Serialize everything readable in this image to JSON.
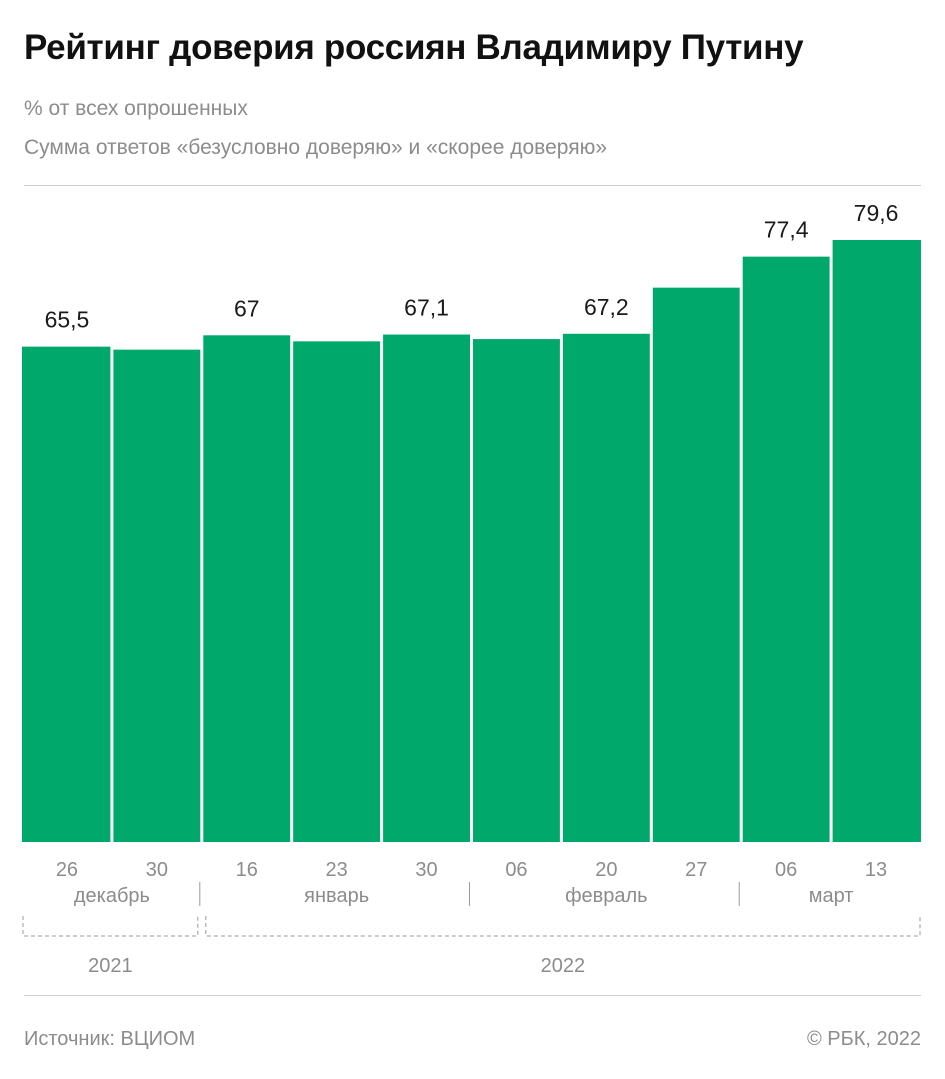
{
  "header": {
    "title": "Рейтинг доверия россиян Владимиру Путину",
    "subtitle_unit": "% от всех опрошенных",
    "subtitle_desc": "Сумма ответов «безусловно доверяю» и «скорее доверяю»"
  },
  "colors": {
    "bar": "#00a86b",
    "label": "#1a1a1a",
    "axis_text": "#8c8c8c",
    "divider": "#9a9a9a"
  },
  "chart_data": {
    "type": "bar",
    "title": "Рейтинг доверия россиян Владимиру Путину",
    "ylabel": "% от всех опрошенных",
    "xlabel": "",
    "ylim": [
      0,
      79.6
    ],
    "categories": [
      "26",
      "30",
      "16",
      "23",
      "30",
      "06",
      "20",
      "27",
      "06",
      "13"
    ],
    "values": [
      65.5,
      65.1,
      67.0,
      66.2,
      67.1,
      66.5,
      67.2,
      73.3,
      77.4,
      79.6
    ],
    "data_labels": [
      "65,5",
      "",
      "67",
      "",
      "67,1",
      "",
      "67,2",
      "",
      "77,4",
      "79,6"
    ],
    "months": [
      {
        "label": "декабрь",
        "start": 0,
        "end": 1
      },
      {
        "label": "январь",
        "start": 2,
        "end": 4
      },
      {
        "label": "февраль",
        "start": 5,
        "end": 7
      },
      {
        "label": "март",
        "start": 8,
        "end": 9
      }
    ],
    "years": [
      {
        "label": "2021",
        "start": 0,
        "end": 1
      },
      {
        "label": "2022",
        "start": 2,
        "end": 9
      }
    ]
  },
  "footer": {
    "source": "Источник: ВЦИОМ",
    "copyright": "© РБК, 2022"
  }
}
